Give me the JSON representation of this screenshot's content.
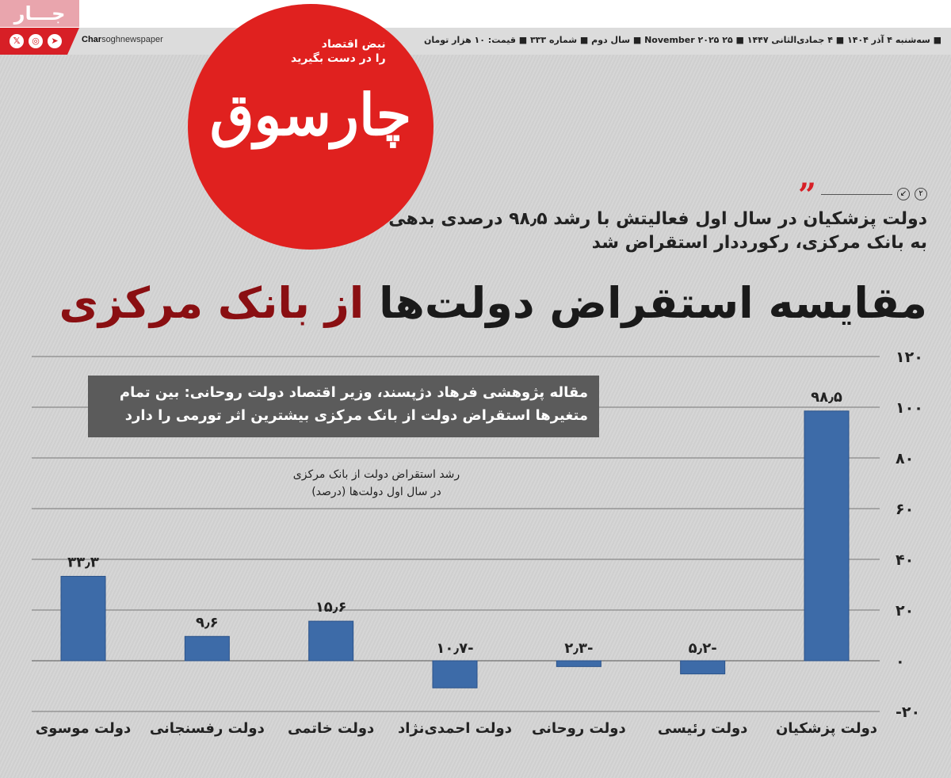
{
  "masthead": {
    "brand_tag": "جـــار",
    "social_icons": [
      "x-icon",
      "instagram-icon",
      "telegram-icon"
    ],
    "handle_bold": "Char",
    "handle_rest": "soghnewspaper",
    "dateline": "■ سه‌شنبه ۴ آذر ۱۴۰۴ ■ ۴ جمادی‌الثانی ۱۴۴۷ ■ ۲۵ November ۲۰۲۵ ■ سال دوم ■ شماره ۳۳۳ ■ قیمت: ۱۰ هزار تومان",
    "logo_name": "چارسوق",
    "slogan_line1": "نبض اقتصاد",
    "slogan_line2": "را در دست بگیرید",
    "accent_color": "#e0211f"
  },
  "article": {
    "page_ref": "۲",
    "lead": "دولت پزشکیان در سال اول فعالیتش با رشد ۹۸٫۵ درصدی بدهی به بانک مرکزی، رکورددار استقراض شد",
    "headline_dark": "مقایسه استقراض دولت‌ها",
    "headline_red": "از بانک مرکزی",
    "headline_red_color": "#8a0f12",
    "callout": "مقاله پژوهشی فرهاد دژپسند، وزیر اقتصاد دولت روحانی: بین تمام متغیرها استقراض دولت از بانک مرکزی بیشترین اثر تورمی را دارد"
  },
  "chart_data": {
    "type": "bar",
    "title_line1": "رشد استقراض دولت از بانک مرکزی",
    "title_line2": "در سال اول دولت‌ها (درصد)",
    "categories": [
      "دولت موسوی",
      "دولت رفسنجانی",
      "دولت خاتمی",
      "دولت احمدی‌نژاد",
      "دولت روحانی",
      "دولت رئیسی",
      "دولت پزشکیان"
    ],
    "values": [
      33.3,
      9.6,
      15.6,
      -10.7,
      -2.3,
      -5.2,
      98.5
    ],
    "value_labels": [
      "۳۳٫۳",
      "۹٫۶",
      "۱۵٫۶",
      "-۱۰٫۷",
      "-۲٫۳",
      "-۵٫۲",
      "۹۸٫۵"
    ],
    "ylim": [
      -20,
      120
    ],
    "yticks": [
      120,
      100,
      80,
      60,
      40,
      20,
      0,
      -20
    ],
    "ytick_labels": [
      "۱۲۰",
      "۱۰۰",
      "۸۰",
      "۶۰",
      "۴۰",
      "۲۰",
      "۰",
      "-۲۰"
    ],
    "y_axis_side": "right",
    "grid": true,
    "bar_color": "#3d6ba8"
  }
}
